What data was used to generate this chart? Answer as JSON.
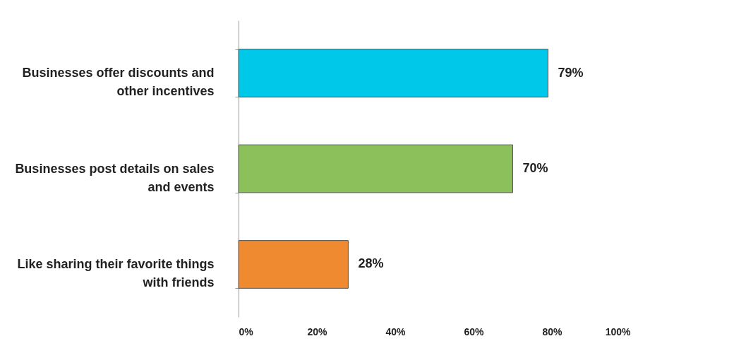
{
  "chart_data": {
    "type": "bar",
    "orientation": "horizontal",
    "categories": [
      "Businesses offer discounts and other incentives",
      "Businesses post details on sales and events",
      "Like sharing their favorite things with friends"
    ],
    "values": [
      79,
      70,
      28
    ],
    "colors": [
      "#00c8e8",
      "#8cc05a",
      "#f08a30"
    ],
    "value_labels": [
      "79%",
      "70%",
      "28%"
    ],
    "xlim": [
      0,
      100
    ],
    "xticks": [
      {
        "value": 0,
        "label": "0%"
      },
      {
        "value": 20,
        "label": "20%"
      },
      {
        "value": 40,
        "label": "40%"
      },
      {
        "value": 60,
        "label": "60%"
      },
      {
        "value": 80,
        "label": "80%"
      },
      {
        "value": 100,
        "label": "100%"
      }
    ],
    "grid": false
  }
}
